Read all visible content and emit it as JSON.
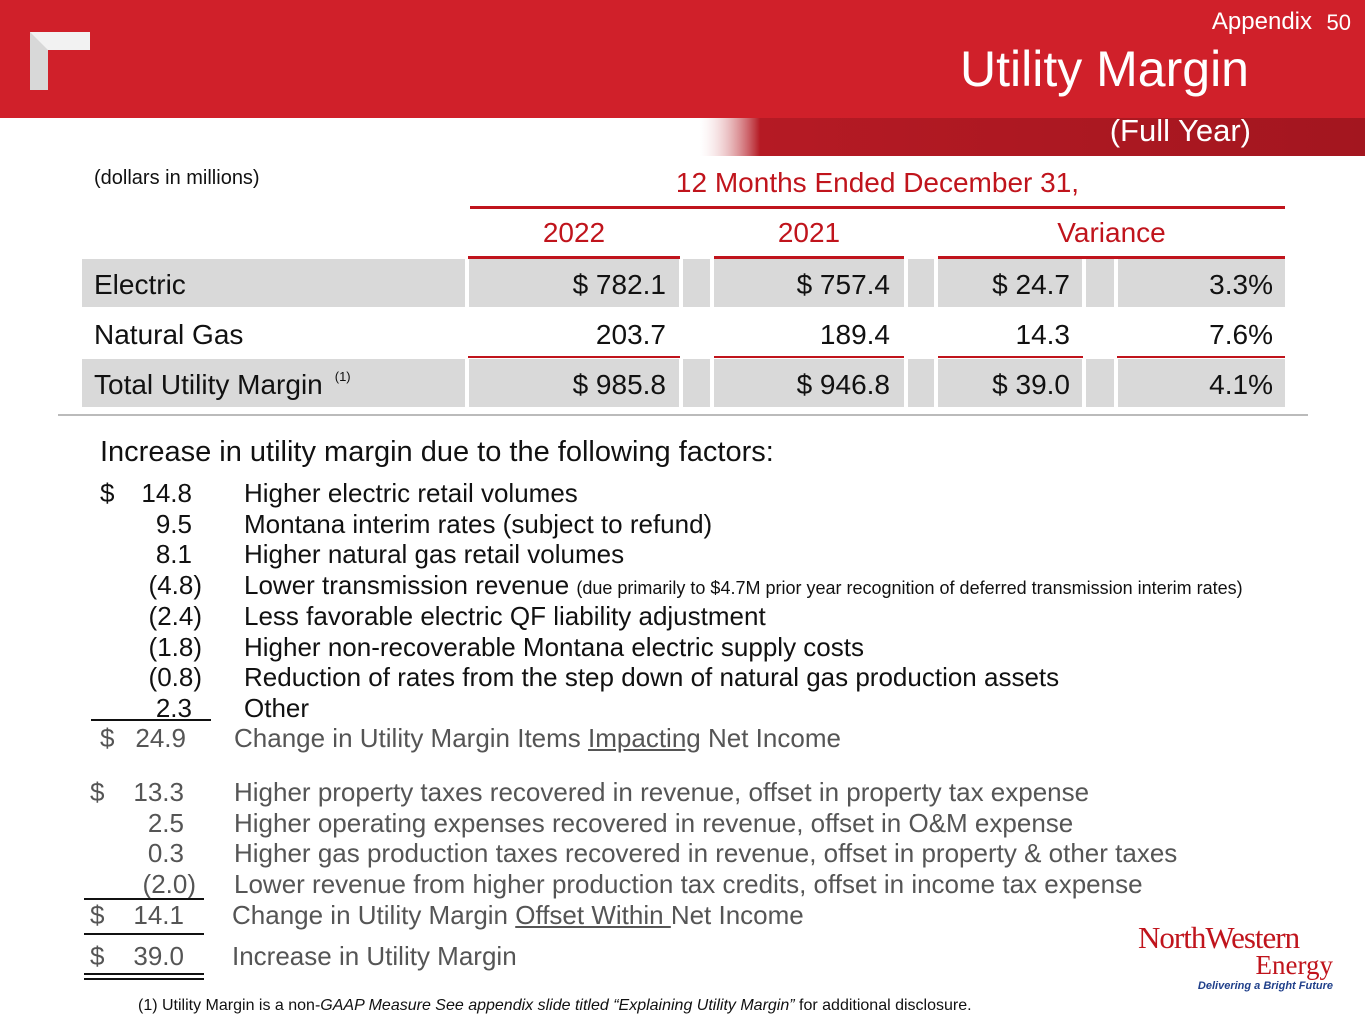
{
  "header": {
    "appendix": "Appendix",
    "page_number": "50",
    "title": "Utility Margin",
    "subtitle": "(Full Year)"
  },
  "table": {
    "units": "(dollars in millions)",
    "period": "12 Months Ended December 31,",
    "columns": [
      "2022",
      "2021",
      "Variance"
    ],
    "rows": [
      {
        "label": "Electric",
        "y2022": "$ 782.1",
        "y2021": "$ 757.4",
        "var": "$ 24.7",
        "pct": "3.3%"
      },
      {
        "label": "Natural Gas",
        "y2022": "203.7",
        "y2021": "189.4",
        "var": "14.3",
        "pct": "7.6%"
      },
      {
        "label": "Total Utility Margin",
        "footnote_ref": "(1)",
        "y2022": "$ 985.8",
        "y2021": "$ 946.8",
        "var": "$ 39.0",
        "pct": "4.1%"
      }
    ]
  },
  "factors": {
    "heading": "Increase in utility margin due to the following factors:",
    "impacting": [
      {
        "cur": "$",
        "amt": "14.8",
        "text": "Higher electric retail volumes"
      },
      {
        "cur": "",
        "amt": "9.5",
        "text": "Montana interim rates (subject to refund)"
      },
      {
        "cur": "",
        "amt": "8.1",
        "text": "Higher natural gas retail volumes"
      },
      {
        "cur": "",
        "amt": "(4.8)",
        "text": "Lower transmission revenue",
        "note": "(due primarily to $4.7M prior year recognition of deferred transmission interim rates)"
      },
      {
        "cur": "",
        "amt": "(2.4)",
        "text": "Less favorable electric QF liability adjustment"
      },
      {
        "cur": "",
        "amt": "(1.8)",
        "text": "Higher non-recoverable Montana electric supply costs"
      },
      {
        "cur": "",
        "amt": "(0.8)",
        "text": "Reduction of rates from the step down of natural gas production assets"
      },
      {
        "cur": "",
        "amt": "2.3",
        "text": "Other"
      }
    ],
    "impacting_total": {
      "cur": "$",
      "amt": "24.9",
      "pre": "Change in Utility Margin Items ",
      "ul": "Impacting",
      "post": " Net Income"
    },
    "offset": [
      {
        "cur": "$",
        "amt": "13.3",
        "text": "Higher property taxes recovered in revenue, offset in property tax expense"
      },
      {
        "cur": "",
        "amt": "2.5",
        "text": "Higher operating expenses recovered in revenue, offset in O&M expense"
      },
      {
        "cur": "",
        "amt": "0.3",
        "text": "Higher gas production taxes recovered in revenue, offset in property & other taxes"
      },
      {
        "cur": "",
        "amt": "(2.0)",
        "text": "Lower revenue from higher production tax credits, offset in income tax expense"
      }
    ],
    "offset_total": {
      "cur": "$",
      "amt": "14.1",
      "pre": "Change in Utility Margin ",
      "ul": "Offset Within ",
      "post": "Net Income"
    },
    "grand_total": {
      "cur": "$",
      "amt": "39.0",
      "text": "Increase in Utility Margin"
    }
  },
  "footnote": {
    "prefix": "(1) Utility Margin is a non-",
    "italic": "GAAP Measure  See appendix slide titled “Explaining Utility Margin”",
    "suffix": " for additional disclosure."
  },
  "logo": {
    "line1": "NorthWestern",
    "line2": "Energy",
    "tagline": "Delivering a Bright Future"
  }
}
